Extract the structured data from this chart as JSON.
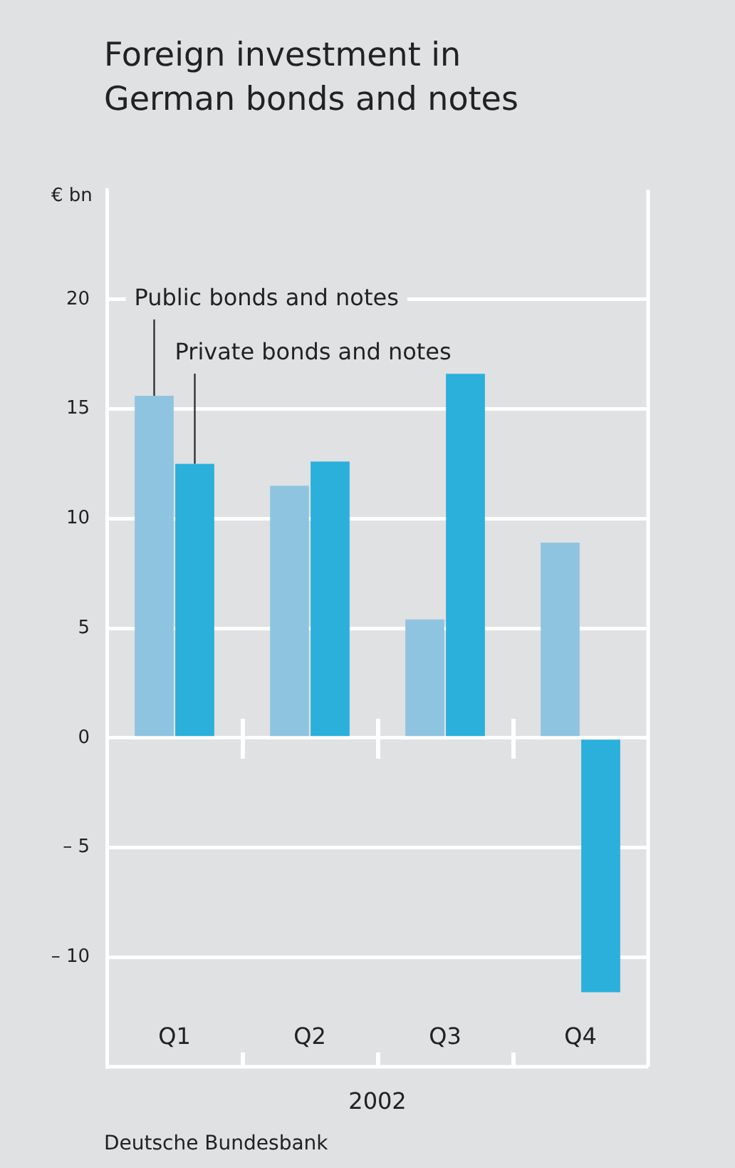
{
  "chart_data": {
    "type": "bar",
    "title": "Foreign investment in German bonds and notes",
    "ylabel": "€ bn",
    "xlabel": "2002",
    "annotations": [
      "Deutsche Bundesbank"
    ],
    "categories": [
      "Q1",
      "Q2",
      "Q3",
      "Q4"
    ],
    "series": [
      {
        "name": "Public bonds and notes",
        "color": "#8fc4e0",
        "values": [
          15.6,
          11.5,
          5.4,
          8.9
        ]
      },
      {
        "name": "Private bonds and notes",
        "color": "#2ab0da",
        "values": [
          12.5,
          12.6,
          16.6,
          -11.6
        ]
      }
    ],
    "ylim": [
      -15,
      25
    ],
    "yticks": [
      {
        "value": -10,
        "label": "– 10"
      },
      {
        "value": -5,
        "label": "– 5"
      },
      0,
      5,
      10,
      15,
      20
    ],
    "grid": "y",
    "legend": false
  }
}
